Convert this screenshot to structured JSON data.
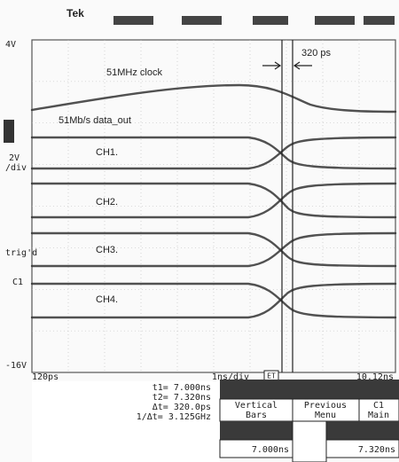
{
  "header": {
    "brand": "Tek"
  },
  "screen": {
    "y_top": "4V",
    "y_bottom": "-16V",
    "scale": [
      "2V",
      "/div"
    ],
    "trigger": [
      "trig'd",
      "C1"
    ],
    "x_left": "120ps",
    "x_center": "1ns/div",
    "mode": "ET",
    "x_right": "10.12ns",
    "annotations": {
      "delta": "320 ps",
      "clock": "51MHz clock",
      "data": "51Mb/s data_out"
    },
    "channels": [
      "CH1.",
      "CH2.",
      "CH3.",
      "CH4."
    ]
  },
  "readout": {
    "t1": "t1= 7.000ns",
    "t2": "t2= 7.320ns",
    "dt": "Δt= 320.0ps",
    "inv": "1/Δt= 3.125GHz"
  },
  "menu": {
    "buttons": [
      [
        "Vertical",
        "Bars"
      ],
      [
        "Previous",
        "Menu"
      ],
      [
        "C1",
        "Main"
      ]
    ],
    "values": [
      "7.000ns",
      "7.320ns"
    ]
  }
}
